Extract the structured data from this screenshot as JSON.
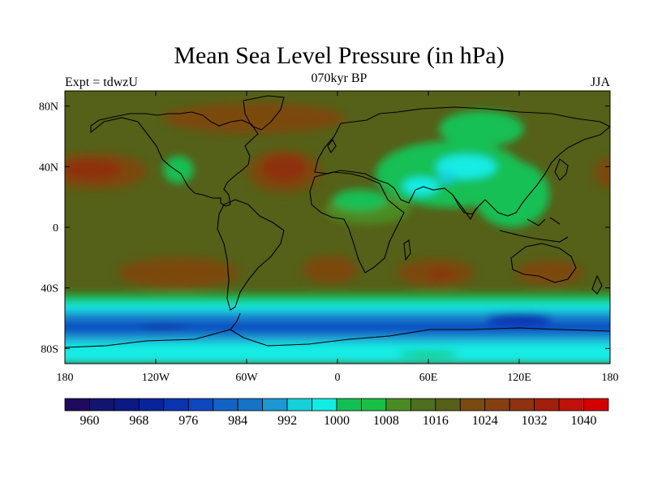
{
  "header": {
    "title": "Mean Sea Level Pressure (in hPa)",
    "subtitle": "070kyr BP",
    "left_label": "Expt = tdwzU",
    "right_label": "JJA"
  },
  "axes": {
    "lat_ticks": [
      {
        "value": 80,
        "label": "80N"
      },
      {
        "value": 40,
        "label": "40N"
      },
      {
        "value": 0,
        "label": "0"
      },
      {
        "value": -40,
        "label": "40S"
      },
      {
        "value": -80,
        "label": "80S"
      }
    ],
    "lon_ticks": [
      {
        "value": -180,
        "label": "180"
      },
      {
        "value": -120,
        "label": "120W"
      },
      {
        "value": -60,
        "label": "60W"
      },
      {
        "value": 0,
        "label": "0"
      },
      {
        "value": 60,
        "label": "60E"
      },
      {
        "value": 120,
        "label": "120E"
      },
      {
        "value": 180,
        "label": "180"
      }
    ]
  },
  "colorbar": {
    "colors": [
      "#1e0a5f",
      "#12146e",
      "#0b1a82",
      "#07249a",
      "#0a34b0",
      "#0f47c1",
      "#1263c6",
      "#1573c8",
      "#1c98d2",
      "#16d0da",
      "#12ece4",
      "#13c054",
      "#18c045",
      "#4b8c22",
      "#4e6f1e",
      "#556018",
      "#7b4a10",
      "#864010",
      "#8e3210",
      "#a41e0c",
      "#c01208",
      "#d40000"
    ],
    "labels": [
      "960",
      "968",
      "976",
      "984",
      "992",
      "1000",
      "1008",
      "1016",
      "1024",
      "1032",
      "1040"
    ]
  },
  "map": {
    "lon_range": [
      -180,
      180
    ],
    "lat_range": [
      -90,
      90
    ],
    "background": "#556018",
    "regions": [
      {
        "name": "north-pacific-high",
        "lon": -160,
        "lat": 37,
        "rx": 34,
        "ry": 12,
        "color": "#7b4a10"
      },
      {
        "name": "north-pacific-high-core",
        "lon": -162,
        "lat": 38,
        "rx": 20,
        "ry": 7,
        "color": "#8e3210"
      },
      {
        "name": "azores-high",
        "lon": -35,
        "lat": 37,
        "rx": 24,
        "ry": 14,
        "color": "#7b4a10"
      },
      {
        "name": "azores-high-core",
        "lon": -35,
        "lat": 39,
        "rx": 15,
        "ry": 9,
        "color": "#8e3210"
      },
      {
        "name": "arctic-high",
        "lon": -55,
        "lat": 72,
        "rx": 60,
        "ry": 10,
        "color": "#7b4a10"
      },
      {
        "name": "south-pacific-high",
        "lon": -105,
        "lat": -30,
        "rx": 40,
        "ry": 10,
        "color": "#7b4a10"
      },
      {
        "name": "south-atlantic-high",
        "lon": -5,
        "lat": -28,
        "rx": 18,
        "ry": 9,
        "color": "#7b4a10"
      },
      {
        "name": "south-indian-high",
        "lon": 65,
        "lat": -30,
        "rx": 25,
        "ry": 9,
        "color": "#7b4a10"
      },
      {
        "name": "south-indian-high-core",
        "lon": 68,
        "lat": -31,
        "rx": 9,
        "ry": 3,
        "color": "#8e3210"
      },
      {
        "name": "australian-high",
        "lon": 140,
        "lat": -30,
        "rx": 22,
        "ry": 8,
        "color": "#7b4a10"
      },
      {
        "name": "hawaii-west-high",
        "lon": 178,
        "lat": 36,
        "rx": 8,
        "ry": 10,
        "color": "#7b4a10"
      },
      {
        "name": "north-america-low",
        "lon": -105,
        "lat": 38,
        "rx": 10,
        "ry": 9,
        "color": "#13c054"
      },
      {
        "name": "tropical-africa-low",
        "lon": 20,
        "lat": 12,
        "rx": 28,
        "ry": 10,
        "color": "#4b8c22"
      },
      {
        "name": "africa-green",
        "lon": 15,
        "lat": 18,
        "rx": 18,
        "ry": 7,
        "color": "#13c054"
      },
      {
        "name": "asian-low",
        "lon": 75,
        "lat": 35,
        "rx": 50,
        "ry": 22,
        "color": "#13c054"
      },
      {
        "name": "asian-low-east",
        "lon": 115,
        "lat": 22,
        "rx": 25,
        "ry": 22,
        "color": "#13c054"
      },
      {
        "name": "siberia-low",
        "lon": 95,
        "lat": 65,
        "rx": 28,
        "ry": 12,
        "color": "#13c054"
      },
      {
        "name": "asian-low-core",
        "lon": 85,
        "lat": 40,
        "rx": 20,
        "ry": 8,
        "color": "#12ece4"
      },
      {
        "name": "arabia-low",
        "lon": 55,
        "lat": 27,
        "rx": 12,
        "ry": 6,
        "color": "#12ece4"
      },
      {
        "name": "india-low",
        "lon": 72,
        "lat": 33,
        "rx": 6,
        "ry": 4,
        "color": "#16d0da"
      }
    ],
    "bands": [
      {
        "name": "band-1008",
        "lat_top": -44,
        "lat_bottom": -53,
        "color": "#13c054"
      },
      {
        "name": "band-1000",
        "lat_top": -50,
        "lat_bottom": -57,
        "color": "#12ece4"
      },
      {
        "name": "band-992",
        "lat_top": -55,
        "lat_bottom": -60,
        "color": "#1c98d2"
      },
      {
        "name": "band-984",
        "lat_top": -59,
        "lat_bottom": -64,
        "color": "#1573c8"
      },
      {
        "name": "band-976",
        "lat_top": -63,
        "lat_bottom": -70,
        "color": "#0f47c1"
      },
      {
        "name": "band-antarctic-992",
        "lat_top": -70,
        "lat_bottom": -76,
        "color": "#1c98d2"
      },
      {
        "name": "band-antarctic-1000",
        "lat_top": -76,
        "lat_bottom": -90,
        "color": "#12ece4"
      }
    ],
    "lows": [
      {
        "name": "south-indian-low",
        "lon": 120,
        "lat": -60,
        "rx": 22,
        "ry": 4,
        "color": "#0a34b0"
      },
      {
        "name": "amundsen-low",
        "lon": -115,
        "lat": -66,
        "rx": 15,
        "ry": 3,
        "color": "#0a34b0"
      },
      {
        "name": "antarctic-green",
        "lon": 60,
        "lat": -84,
        "rx": 20,
        "ry": 2,
        "color": "#13c054"
      }
    ]
  }
}
